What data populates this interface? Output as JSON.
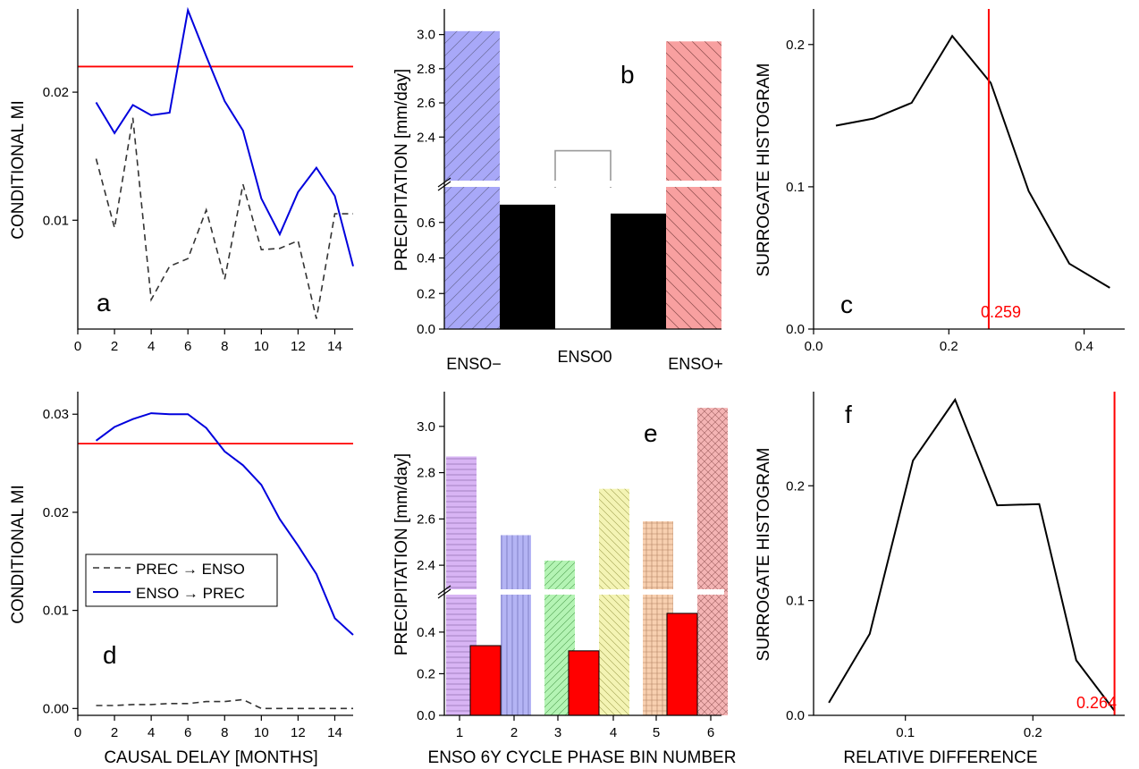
{
  "colors": {
    "blue": "#0000dd",
    "red": "#ff0000",
    "dashed": "#333333",
    "enso_minus": "#a8a8f8",
    "enso_plus": "#f8a0a0"
  },
  "chart_data": [
    {
      "panel": "a",
      "type": "line",
      "ylabel": "CONDITIONAL MI",
      "xlim": [
        0,
        15
      ],
      "xticks": [
        "0",
        "2",
        "4",
        "6",
        "8",
        "10",
        "12",
        "14"
      ],
      "ylim": [
        0.0015,
        0.0265
      ],
      "yticks": [
        "0.01",
        "0.02"
      ],
      "threshold": 0.022,
      "series": [
        {
          "x": [
            1,
            2,
            3,
            4,
            5,
            6,
            7,
            8,
            9,
            10,
            11,
            12,
            13,
            14,
            15
          ],
          "y": [
            0.0192,
            0.0168,
            0.019,
            0.0182,
            0.0184,
            0.0264,
            0.0228,
            0.0193,
            0.017,
            0.0117,
            0.0089,
            0.0122,
            0.0141,
            0.0119,
            0.0064
          ]
        },
        {
          "x": [
            1,
            2,
            3,
            4,
            5,
            6,
            7,
            8,
            9,
            10,
            11,
            12,
            13,
            14,
            15
          ],
          "y": [
            0.0148,
            0.0094,
            0.018,
            0.0038,
            0.0064,
            0.007,
            0.0108,
            0.0054,
            0.0128,
            0.0077,
            0.0078,
            0.0084,
            0.0023,
            0.0105,
            0.0105
          ]
        }
      ]
    },
    {
      "panel": "b",
      "type": "bar",
      "ylabel": "PRECIPITATION [mm/day]",
      "categories": [
        "ENSO−",
        "ENSO0",
        "ENSO+"
      ],
      "upper_ylim": [
        2.15,
        3.15
      ],
      "upper_yticks": [
        "2.4",
        "2.6",
        "2.8",
        "3.0"
      ],
      "lower_ylim": [
        0.0,
        0.8
      ],
      "lower_yticks": [
        "0.0",
        "0.2",
        "0.4",
        "0.6"
      ],
      "mean_values": [
        3.02,
        2.32,
        2.96
      ],
      "inner_values": [
        0.7,
        0.65
      ]
    },
    {
      "panel": "c",
      "type": "line",
      "ylabel": "SURROGATE HISTOGRAM",
      "xlim": [
        0.0,
        0.46
      ],
      "xticks": [
        "0.0",
        "0.2",
        "0.4"
      ],
      "ylim": [
        0.0,
        0.225
      ],
      "yticks": [
        "0.0",
        "0.1",
        "0.2"
      ],
      "threshold_x": 0.259,
      "threshold_label": "0.259",
      "x": [
        0.033,
        0.089,
        0.145,
        0.205,
        0.262,
        0.318,
        0.378,
        0.438
      ],
      "y": [
        0.143,
        0.148,
        0.159,
        0.206,
        0.173,
        0.097,
        0.046,
        0.029
      ]
    },
    {
      "panel": "d",
      "type": "line",
      "ylabel": "CONDITIONAL  MI",
      "xlabel": "CAUSAL DELAY [MONTHS]",
      "xlim": [
        0,
        15
      ],
      "xticks": [
        "0",
        "2",
        "4",
        "6",
        "8",
        "10",
        "12",
        "14"
      ],
      "ylim": [
        -0.0007,
        0.0323
      ],
      "yticks": [
        "0.00",
        "0.01",
        "0.02",
        "0.03"
      ],
      "threshold": 0.027,
      "series": [
        {
          "name": "PREC → ENSO",
          "x": [
            1,
            2,
            3,
            4,
            5,
            6,
            7,
            8,
            9,
            10,
            11,
            12,
            13,
            14,
            15
          ],
          "y": [
            0.0003,
            0.0003,
            0.0004,
            0.0004,
            0.0005,
            0.0005,
            0.0007,
            0.0007,
            0.0009,
            0.0,
            0.0,
            0.0,
            0.0,
            0.0,
            0.0
          ]
        },
        {
          "name": "ENSO → PREC",
          "x": [
            1,
            2,
            3,
            4,
            5,
            6,
            7,
            8,
            9,
            10,
            11,
            12,
            13,
            14,
            15
          ],
          "y": [
            0.0273,
            0.0287,
            0.0295,
            0.0301,
            0.03,
            0.03,
            0.0286,
            0.0262,
            0.0248,
            0.0228,
            0.0193,
            0.0166,
            0.0137,
            0.0092,
            0.0075
          ]
        }
      ]
    },
    {
      "panel": "e",
      "type": "bar",
      "ylabel": "PRECIPITATION  [mm/day]",
      "xlabel": "ENSO 6Y CYCLE PHASE BIN NUMBER",
      "categories": [
        "1",
        "2",
        "3",
        "4",
        "5",
        "6"
      ],
      "upper_ylim": [
        2.3,
        3.15
      ],
      "upper_yticks": [
        "2.4",
        "2.6",
        "2.8",
        "3.0"
      ],
      "lower_ylim": [
        0.0,
        0.58
      ],
      "lower_yticks": [
        "0.0",
        "0.2",
        "0.4"
      ],
      "mean_values": [
        2.87,
        2.53,
        2.42,
        2.73,
        2.59,
        3.08
      ],
      "inner_values": [
        0.335,
        0.31,
        0.49
      ],
      "bar_colors": [
        "#d8b4f4",
        "#b4b4f4",
        "#b4f4b4",
        "#f4f4b4",
        "#f8d0b0",
        "#f4b4b4"
      ]
    },
    {
      "panel": "f",
      "type": "line",
      "ylabel": "SURROGATE HISTOGRAM",
      "xlabel": "RELATIVE DIFFERENCE",
      "xlim": [
        0.028,
        0.272
      ],
      "xticks": [
        "0.1",
        "0.2"
      ],
      "ylim": [
        0.0,
        0.282
      ],
      "yticks": [
        "0.0",
        "0.1",
        "0.2"
      ],
      "threshold_x": 0.264,
      "threshold_label": "0.264",
      "x": [
        0.04,
        0.072,
        0.106,
        0.139,
        0.172,
        0.205,
        0.234,
        0.264
      ],
      "y": [
        0.011,
        0.071,
        0.222,
        0.275,
        0.183,
        0.184,
        0.048,
        0.004
      ]
    }
  ]
}
